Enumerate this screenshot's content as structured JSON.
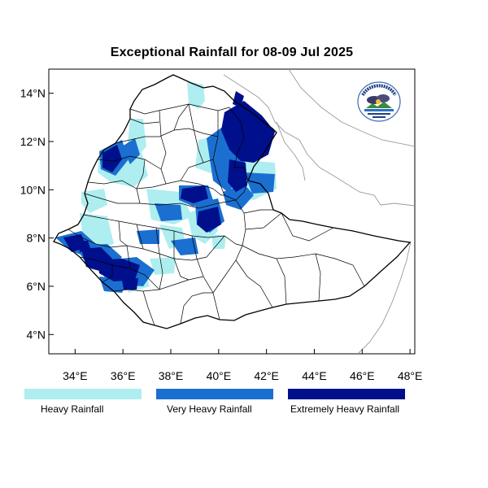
{
  "title": "Exceptional Rainfall for 08-09 Jul 2025",
  "axes": {
    "y_ticks": [
      {
        "value": 4,
        "label": "4°N"
      },
      {
        "value": 6,
        "label": "6°N"
      },
      {
        "value": 8,
        "label": "8°N"
      },
      {
        "value": 10,
        "label": "10°N"
      },
      {
        "value": 12,
        "label": "12°N"
      },
      {
        "value": 14,
        "label": "14°N"
      }
    ],
    "x_ticks": [
      {
        "value": 34,
        "label": "34°E"
      },
      {
        "value": 36,
        "label": "36°E"
      },
      {
        "value": 38,
        "label": "38°E"
      },
      {
        "value": 40,
        "label": "40°E"
      },
      {
        "value": 42,
        "label": "42°E"
      },
      {
        "value": 44,
        "label": "44°E"
      },
      {
        "value": 46,
        "label": "46°E"
      },
      {
        "value": 48,
        "label": "48°E"
      }
    ],
    "lon_range": [
      32.9,
      48.2
    ],
    "lat_range": [
      3.2,
      15.0
    ]
  },
  "legend": [
    {
      "label": "Heavy Rainfall",
      "color": "#aeeef0"
    },
    {
      "label": "Very Heavy Rainfall",
      "color": "#1a6fd0"
    },
    {
      "label": "Extremely Heavy Rainfall",
      "color": "#000f8c"
    }
  ],
  "colors": {
    "heavy": "#aeeef0",
    "very_heavy": "#1a6fd0",
    "extreme": "#000f8c",
    "border": "#000000",
    "neighbor_border": "#9a9a9a"
  },
  "logo": {
    "icon": "meteorology-agency-seal"
  }
}
